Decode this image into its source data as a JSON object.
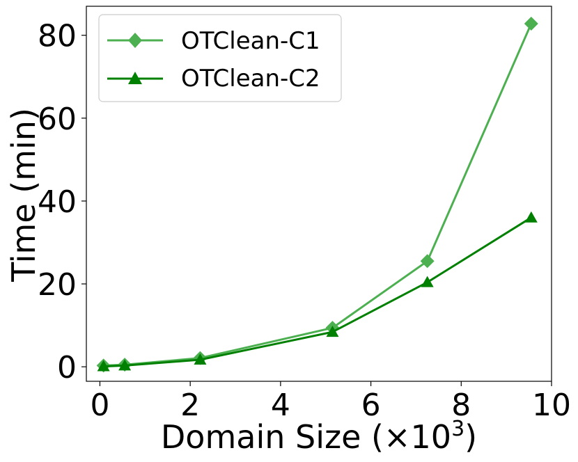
{
  "chart_data": {
    "type": "line",
    "xlabel": "Domain Size (×10",
    "xlabel_sup": "3",
    "xlabel_end": ")",
    "ylabel": "Time (min)",
    "xlim": [
      -0.3,
      10.0
    ],
    "ylim": [
      -3.5,
      87
    ],
    "xticks": [
      0,
      2,
      4,
      6,
      8,
      10
    ],
    "yticks": [
      0,
      20,
      40,
      60,
      80
    ],
    "xtick_labels": [
      "0",
      "2",
      "4",
      "6",
      "8",
      "10"
    ],
    "ytick_labels": [
      "0",
      "20",
      "40",
      "60",
      "80"
    ],
    "grid": false,
    "legend_position": "top-left",
    "series": [
      {
        "name": "OTClean-C1",
        "marker": "diamond",
        "color": "#4caf50",
        "x": [
          0.08,
          0.55,
          2.22,
          5.15,
          7.25,
          9.55
        ],
        "y": [
          0.3,
          0.5,
          2.1,
          9.4,
          25.5,
          82.8
        ]
      },
      {
        "name": "OTClean-C2",
        "marker": "triangle",
        "color": "#008000",
        "x": [
          0.08,
          0.55,
          2.22,
          5.15,
          7.25,
          9.55
        ],
        "y": [
          0.1,
          0.3,
          1.7,
          8.4,
          20.4,
          36.0
        ]
      }
    ]
  }
}
